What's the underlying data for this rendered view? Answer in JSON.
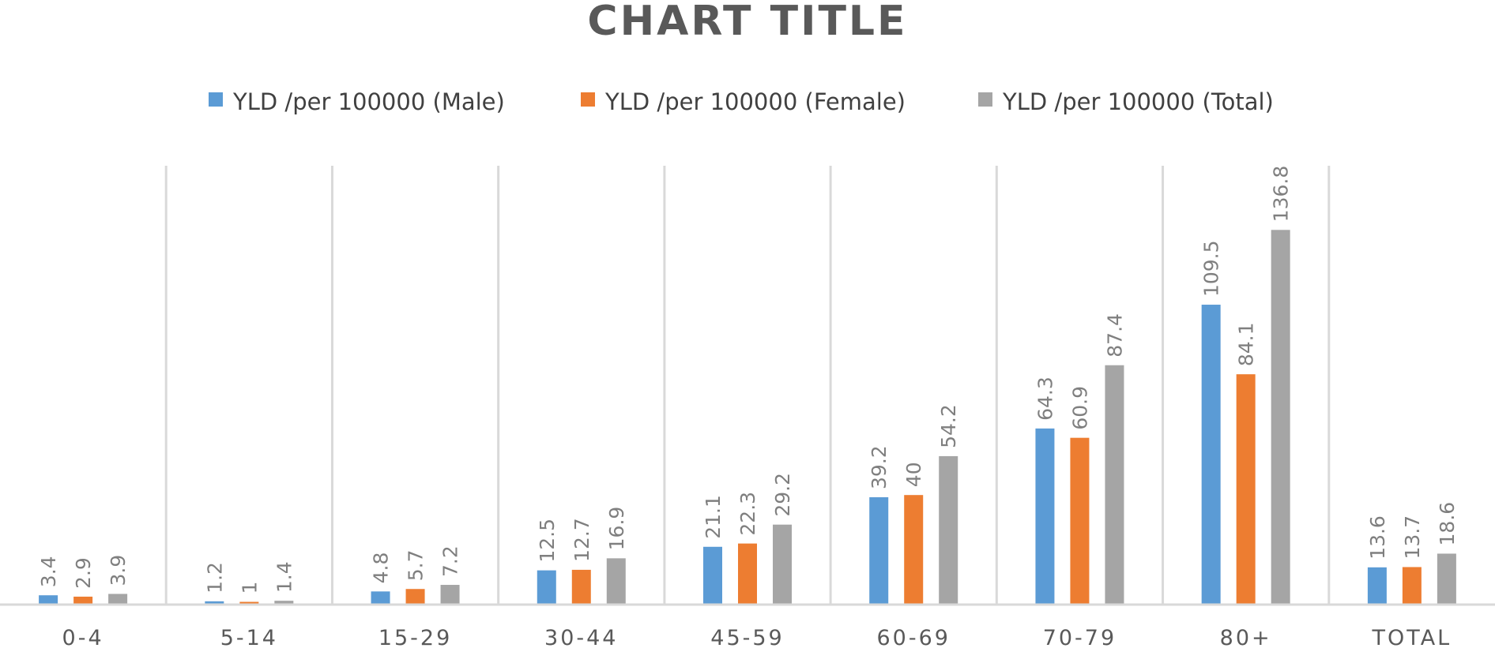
{
  "chart_data": {
    "type": "bar",
    "title": "CHART TITLE",
    "xlabel": "",
    "ylabel": "",
    "categories": [
      "0-4",
      "5-14",
      "15-29",
      "30-44",
      "45-59",
      "60-69",
      "70-79",
      "80+",
      "TOTAL"
    ],
    "series": [
      {
        "name": "YLD /per 100000 (Male)",
        "color": "#5b9bd5",
        "values": [
          3.4,
          1.2,
          4.8,
          12.5,
          21.1,
          39.2,
          64.3,
          109.5,
          13.6
        ],
        "labels": [
          "3.4",
          "1.2",
          "4.8",
          "12.5",
          "21.1",
          "39.2",
          "64.3",
          "109.5",
          "13.6"
        ]
      },
      {
        "name": "YLD /per 100000 (Female)",
        "color": "#ed7d31",
        "values": [
          2.9,
          1,
          5.7,
          12.7,
          22.3,
          40,
          60.9,
          84.1,
          13.7
        ],
        "labels": [
          "2.9",
          "1",
          "5.7",
          "12.7",
          "22.3",
          "40",
          "60.9",
          "84.1",
          "13.7"
        ]
      },
      {
        "name": "YLD /per 100000 (Total)",
        "color": "#a5a5a5",
        "values": [
          3.9,
          1.4,
          7.2,
          16.9,
          29.2,
          54.2,
          87.4,
          136.8,
          18.6
        ],
        "labels": [
          "3.9",
          "1.4",
          "7.2",
          "16.9",
          "29.2",
          "54.2",
          "87.4",
          "136.8",
          "18.6"
        ]
      }
    ],
    "ylim": [
      0,
      160
    ],
    "grid": "vertical category separators",
    "legend": "top",
    "data_labels": "rotated, above bars"
  }
}
